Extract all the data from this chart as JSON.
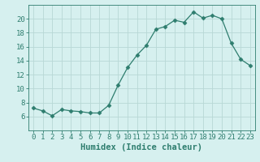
{
  "x": [
    0,
    1,
    2,
    3,
    4,
    5,
    6,
    7,
    8,
    9,
    10,
    11,
    12,
    13,
    14,
    15,
    16,
    17,
    18,
    19,
    20,
    21,
    22,
    23
  ],
  "y": [
    7.2,
    6.8,
    6.1,
    7.0,
    6.8,
    6.7,
    6.5,
    6.5,
    7.6,
    10.5,
    13.0,
    14.8,
    16.2,
    18.5,
    18.9,
    19.8,
    19.5,
    21.0,
    20.1,
    20.5,
    20.0,
    16.5,
    14.2,
    13.3
  ],
  "line_color": "#2e7d6e",
  "marker": "D",
  "marker_size": 2.5,
  "bg_color": "#d6f0ef",
  "grid_color": "#b8d8d5",
  "xlabel": "Humidex (Indice chaleur)",
  "ylabel": "",
  "xlim": [
    -0.5,
    23.5
  ],
  "ylim": [
    4,
    22
  ],
  "yticks": [
    6,
    8,
    10,
    12,
    14,
    16,
    18,
    20
  ],
  "xticks": [
    0,
    1,
    2,
    3,
    4,
    5,
    6,
    7,
    8,
    9,
    10,
    11,
    12,
    13,
    14,
    15,
    16,
    17,
    18,
    19,
    20,
    21,
    22,
    23
  ],
  "tick_color": "#2e7d6e",
  "label_color": "#2e7d6e",
  "xlabel_fontsize": 7.5,
  "tick_fontsize": 6.5
}
